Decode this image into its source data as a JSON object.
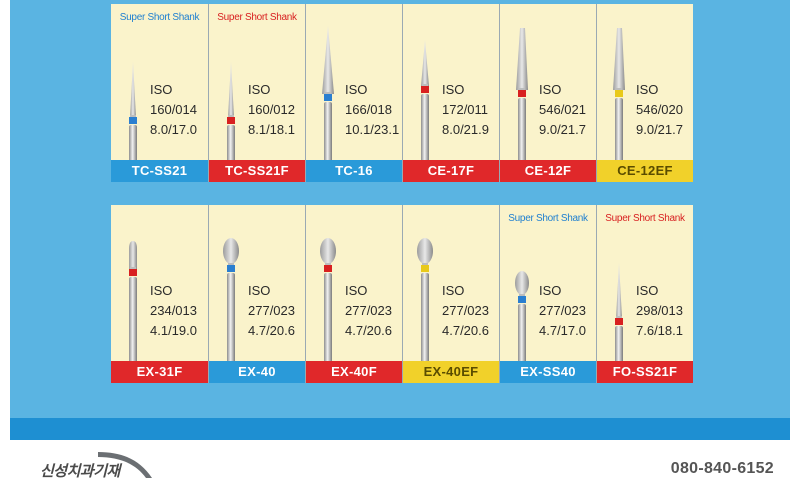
{
  "colors": {
    "blue_label": "#2a9ad9",
    "red_label": "#e0282a",
    "yellow_label": "#f1d12a",
    "shank_blue": "#1e7fd0",
    "shank_red": "#d82020",
    "cell_bg": "#faf3cb"
  },
  "rows": [
    [
      {
        "shank_note": "Super Short Shank",
        "shank_color": "#1e7fd0",
        "iso": "ISO",
        "code": "160/014",
        "size": "8.0/17.0",
        "label": "TC-SS21",
        "label_color": "#2a9ad9",
        "ring": "#2b7fd0",
        "shape": "needle-short"
      },
      {
        "shank_note": "Super Short Shank",
        "shank_color": "#d82020",
        "iso": "ISO",
        "code": "160/012",
        "size": "8.1/18.1",
        "label": "TC-SS21F",
        "label_color": "#e0282a",
        "ring": "#d82020",
        "shape": "needle-short"
      },
      {
        "shank_note": "",
        "shank_color": "",
        "iso": "ISO",
        "code": "166/018",
        "size": "10.1/23.1",
        "label": "TC-16",
        "label_color": "#2a9ad9",
        "ring": "#2b7fd0",
        "shape": "cone-long"
      },
      {
        "shank_note": "",
        "shank_color": "",
        "iso": "ISO",
        "code": "172/011",
        "size": "8.0/21.9",
        "label": "CE-17F",
        "label_color": "#e0282a",
        "ring": "#d82020",
        "shape": "needle-long"
      },
      {
        "shank_note": "",
        "shank_color": "",
        "iso": "ISO",
        "code": "546/021",
        "size": "9.0/21.7",
        "label": "CE-12F",
        "label_color": "#e0282a",
        "ring": "#d82020",
        "shape": "cone-wide"
      },
      {
        "shank_note": "",
        "shank_color": "",
        "iso": "ISO",
        "code": "546/020",
        "size": "9.0/21.7",
        "label": "CE-12EF",
        "label_color": "#f1d12a",
        "ring": "#e8c91a",
        "shape": "cone-wide"
      }
    ],
    [
      {
        "shank_note": "",
        "shank_color": "",
        "iso": "ISO",
        "code": "234/013",
        "size": "4.1/19.0",
        "label": "EX-31F",
        "label_color": "#e0282a",
        "ring": "#d82020",
        "shape": "flame-small"
      },
      {
        "shank_note": "",
        "shank_color": "",
        "iso": "ISO",
        "code": "277/023",
        "size": "4.7/20.6",
        "label": "EX-40",
        "label_color": "#2a9ad9",
        "ring": "#2b7fd0",
        "shape": "egg"
      },
      {
        "shank_note": "",
        "shank_color": "",
        "iso": "ISO",
        "code": "277/023",
        "size": "4.7/20.6",
        "label": "EX-40F",
        "label_color": "#e0282a",
        "ring": "#d82020",
        "shape": "egg"
      },
      {
        "shank_note": "",
        "shank_color": "",
        "iso": "ISO",
        "code": "277/023",
        "size": "4.7/20.6",
        "label": "EX-40EF",
        "label_color": "#f1d12a",
        "ring": "#e8c91a",
        "shape": "egg"
      },
      {
        "shank_note": "Super Short Shank",
        "shank_color": "#1e7fd0",
        "iso": "ISO",
        "code": "277/023",
        "size": "4.7/17.0",
        "label": "EX-SS40",
        "label_color": "#2a9ad9",
        "ring": "#2b7fd0",
        "shape": "egg-short"
      },
      {
        "shank_note": "Super Short Shank",
        "shank_color": "#d82020",
        "iso": "ISO",
        "code": "298/013",
        "size": "7.6/18.1",
        "label": "FO-SS21F",
        "label_color": "#e0282a",
        "ring": "#d82020",
        "shape": "needle-short"
      }
    ]
  ],
  "footer": {
    "company": "신성치과기재",
    "phone": "080-840-6152"
  }
}
